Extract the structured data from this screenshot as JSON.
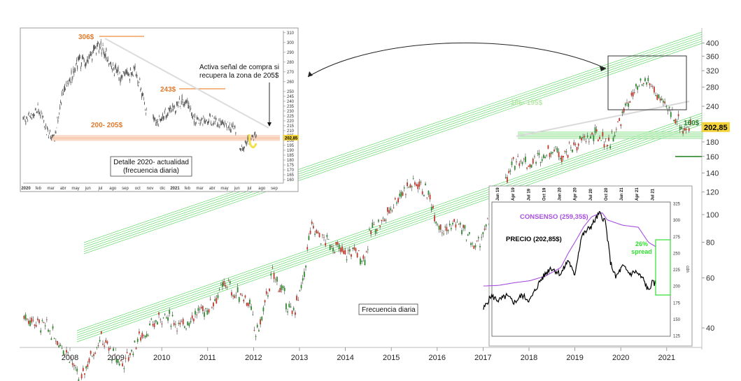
{
  "chart_data": [
    {
      "type": "line",
      "title": "",
      "caption": "Frecuencia diaria",
      "x_axis": {
        "tick_labels": [
          "2008",
          "2009",
          "2010",
          "2011",
          "2012",
          "2013",
          "2014",
          "2015",
          "2016",
          "2017",
          "2018",
          "2019",
          "2020",
          "2021"
        ]
      },
      "y_axis": {
        "scale": "log",
        "tick_labels": [
          "400",
          "360",
          "320",
          "280",
          "240",
          "200",
          "180",
          "160",
          "140",
          "120",
          "100",
          "80",
          "60",
          "40"
        ],
        "ylim": [
          30,
          420
        ]
      },
      "series": [
        {
          "values": [
            [
              "2007-01-01",
              44
            ],
            [
              "2007-04-01",
              42
            ],
            [
              "2007-07-01",
              40
            ],
            [
              "2007-10-01",
              36
            ],
            [
              "2008-01-01",
              32
            ],
            [
              "2008-02-15",
              28
            ],
            [
              "2008-03-20",
              25
            ],
            [
              "2008-05-01",
              29
            ],
            [
              "2008-07-01",
              33
            ],
            [
              "2008-09-01",
              37
            ],
            [
              "2008-11-01",
              34
            ],
            [
              "2009-01-01",
              31
            ],
            [
              "2009-03-01",
              30
            ],
            [
              "2009-05-01",
              33
            ],
            [
              "2009-07-01",
              37
            ],
            [
              "2009-10-01",
              40
            ],
            [
              "2010-01-01",
              44
            ],
            [
              "2010-04-01",
              43
            ],
            [
              "2010-06-01",
              40
            ],
            [
              "2010-09-01",
              44
            ],
            [
              "2011-01-01",
              47
            ],
            [
              "2011-04-01",
              53
            ],
            [
              "2011-06-01",
              58
            ],
            [
              "2011-08-01",
              52
            ],
            [
              "2011-10-01",
              53
            ],
            [
              "2011-12-01",
              48
            ],
            [
              "2012-01-15",
              38
            ],
            [
              "2012-03-01",
              42
            ],
            [
              "2012-06-01",
              62
            ],
            [
              "2012-09-01",
              52
            ],
            [
              "2012-11-01",
              44
            ],
            [
              "2013-01-01",
              52
            ],
            [
              "2013-02-01",
              58
            ],
            [
              "2013-04-01",
              90
            ],
            [
              "2013-07-01",
              82
            ],
            [
              "2013-10-01",
              78
            ],
            [
              "2014-01-01",
              72
            ],
            [
              "2014-03-01",
              75
            ],
            [
              "2014-06-01",
              70
            ],
            [
              "2014-08-01",
              90
            ],
            [
              "2014-11-01",
              95
            ],
            [
              "2015-02-01",
              112
            ],
            [
              "2015-05-01",
              125
            ],
            [
              "2015-08-01",
              130
            ],
            [
              "2015-11-01",
              115
            ],
            [
              "2016-01-01",
              95
            ],
            [
              "2016-03-01",
              88
            ],
            [
              "2016-06-01",
              94
            ],
            [
              "2016-09-01",
              84
            ],
            [
              "2016-11-01",
              76
            ],
            [
              "2017-02-01",
              90
            ],
            [
              "2017-04-01",
              105
            ],
            [
              "2017-07-01",
              130
            ],
            [
              "2017-10-01",
              160
            ],
            [
              "2018-01-01",
              150
            ],
            [
              "2018-04-01",
              160
            ],
            [
              "2018-07-01",
              170
            ],
            [
              "2018-10-01",
              163
            ],
            [
              "2019-01-01",
              175
            ],
            [
              "2019-04-01",
              185
            ],
            [
              "2019-07-01",
              190
            ],
            [
              "2019-10-01",
              178
            ],
            [
              "2020-01-01",
              215
            ],
            [
              "2020-03-01",
              250
            ],
            [
              "2020-06-01",
              280
            ],
            [
              "2020-08-01",
              295
            ],
            [
              "2020-10-01",
              270
            ],
            [
              "2020-12-01",
              240
            ],
            [
              "2021-02-01",
              230
            ],
            [
              "2021-04-01",
              215
            ],
            [
              "2021-05-15",
              198
            ],
            [
              "2021-06-15",
              202.85
            ]
          ]
        }
      ],
      "annotations": {
        "last_price_label": "202,85",
        "zone_label": "185- 195$",
        "support_label": "160$"
      }
    },
    {
      "type": "line",
      "title": "Detalle 2020- actualidad\n(frecuencia diaria)",
      "x_axis": {
        "tick_labels": [
          "2020",
          "feb",
          "mar",
          "abr",
          "may",
          "jun",
          "jul",
          "ago",
          "sep",
          "oct",
          "nov",
          "dic",
          "2021",
          "feb",
          "mar",
          "abr",
          "may",
          "jun",
          "jul",
          "ago",
          "sep"
        ]
      },
      "y_axis": {
        "tick_labels": [
          "310",
          "300",
          "290",
          "280",
          "270",
          "260",
          "250",
          "245",
          "240",
          "235",
          "230",
          "225",
          "220",
          "215",
          "210",
          "205",
          "200",
          "195",
          "190",
          "185",
          "180",
          "175",
          "170",
          "165",
          "160"
        ],
        "ylim": [
          155,
          312
        ]
      },
      "series": [
        {
          "values": [
            [
              "2020-01-02",
              221
            ],
            [
              "2020-01-20",
              224
            ],
            [
              "2020-02-10",
              232
            ],
            [
              "2020-02-28",
              210
            ],
            [
              "2020-03-18",
              202
            ],
            [
              "2020-04-05",
              248
            ],
            [
              "2020-04-25",
              262
            ],
            [
              "2020-05-15",
              282
            ],
            [
              "2020-06-05",
              278
            ],
            [
              "2020-06-25",
              292
            ],
            [
              "2020-07-10",
              296
            ],
            [
              "2020-07-25",
              285
            ],
            [
              "2020-08-10",
              272
            ],
            [
              "2020-08-30",
              265
            ],
            [
              "2020-09-15",
              268
            ],
            [
              "2020-10-05",
              270
            ],
            [
              "2020-10-30",
              228
            ],
            [
              "2020-11-20",
              218
            ],
            [
              "2020-12-10",
              225
            ],
            [
              "2021-01-05",
              232
            ],
            [
              "2021-01-25",
              240
            ],
            [
              "2021-02-10",
              236
            ],
            [
              "2021-02-28",
              219
            ],
            [
              "2021-03-20",
              222
            ],
            [
              "2021-04-10",
              221
            ],
            [
              "2021-04-30",
              216
            ],
            [
              "2021-05-20",
              214
            ],
            [
              "2021-06-05",
              212
            ],
            [
              "2021-06-15",
              193
            ],
            [
              "2021-06-30",
              197
            ],
            [
              "2021-07-15",
              203
            ],
            [
              "2021-07-28",
              202.85
            ]
          ]
        }
      ],
      "annotations": {
        "level_306": "306$",
        "level_243": "243$",
        "zone_200_205": "200- 205$",
        "signal_text": "Activa señal de compra si\nrecupera la zona de 205$",
        "last_price_label": "202,85"
      }
    },
    {
      "type": "line",
      "x_axis": {
        "tick_labels": [
          "Jan 19",
          "Apr 19",
          "Jul 19",
          "Oct 19",
          "Jan 20",
          "Apr 20",
          "Jul 20",
          "Oct 20",
          "Jan 21",
          "Apr 21",
          "Jul 21"
        ]
      },
      "y_axis": {
        "label": "cdn",
        "tick_labels": [
          "325",
          "300",
          "275",
          "250",
          "225",
          "200",
          "175",
          "150",
          "125"
        ],
        "ylim": [
          125,
          325
        ]
      },
      "series": [
        {
          "name": "CONSENSO (259,35$)",
          "color": "#a94fe0",
          "values": [
            [
              "2018-10-01",
              200
            ],
            [
              "2019-01-01",
              201
            ],
            [
              "2019-04-01",
              205
            ],
            [
              "2019-07-01",
              208
            ],
            [
              "2019-10-01",
              215
            ],
            [
              "2020-01-01",
              228
            ],
            [
              "2020-02-15",
              250
            ],
            [
              "2020-04-01",
              270
            ],
            [
              "2020-05-15",
              290
            ],
            [
              "2020-07-01",
              305
            ],
            [
              "2020-09-01",
              311
            ],
            [
              "2020-10-01",
              300
            ],
            [
              "2021-01-01",
              292
            ],
            [
              "2021-04-01",
              289
            ],
            [
              "2021-06-01",
              266
            ],
            [
              "2021-07-15",
              259.35
            ]
          ]
        },
        {
          "name": "PRECIO (202,85$)",
          "color": "#000000",
          "values": [
            [
              "2018-10-01",
              165
            ],
            [
              "2018-11-15",
              185
            ],
            [
              "2019-01-01",
              178
            ],
            [
              "2019-02-15",
              185
            ],
            [
              "2019-04-01",
              175
            ],
            [
              "2019-05-15",
              186
            ],
            [
              "2019-07-01",
              178
            ],
            [
              "2019-09-01",
              208
            ],
            [
              "2019-11-01",
              228
            ],
            [
              "2020-01-01",
              218
            ],
            [
              "2020-02-15",
              240
            ],
            [
              "2020-03-20",
              215
            ],
            [
              "2020-05-01",
              275
            ],
            [
              "2020-07-01",
              292
            ],
            [
              "2020-08-15",
              310
            ],
            [
              "2020-09-20",
              298
            ],
            [
              "2020-10-20",
              236
            ],
            [
              "2020-11-20",
              213
            ],
            [
              "2021-01-01",
              230
            ],
            [
              "2021-02-15",
              218
            ],
            [
              "2021-03-15",
              222
            ],
            [
              "2021-05-01",
              210
            ],
            [
              "2021-06-01",
              192
            ],
            [
              "2021-06-20",
              205
            ],
            [
              "2021-07-15",
              202.85
            ]
          ]
        }
      ],
      "annotations": {
        "spread_label": "26%\nspread"
      }
    }
  ]
}
